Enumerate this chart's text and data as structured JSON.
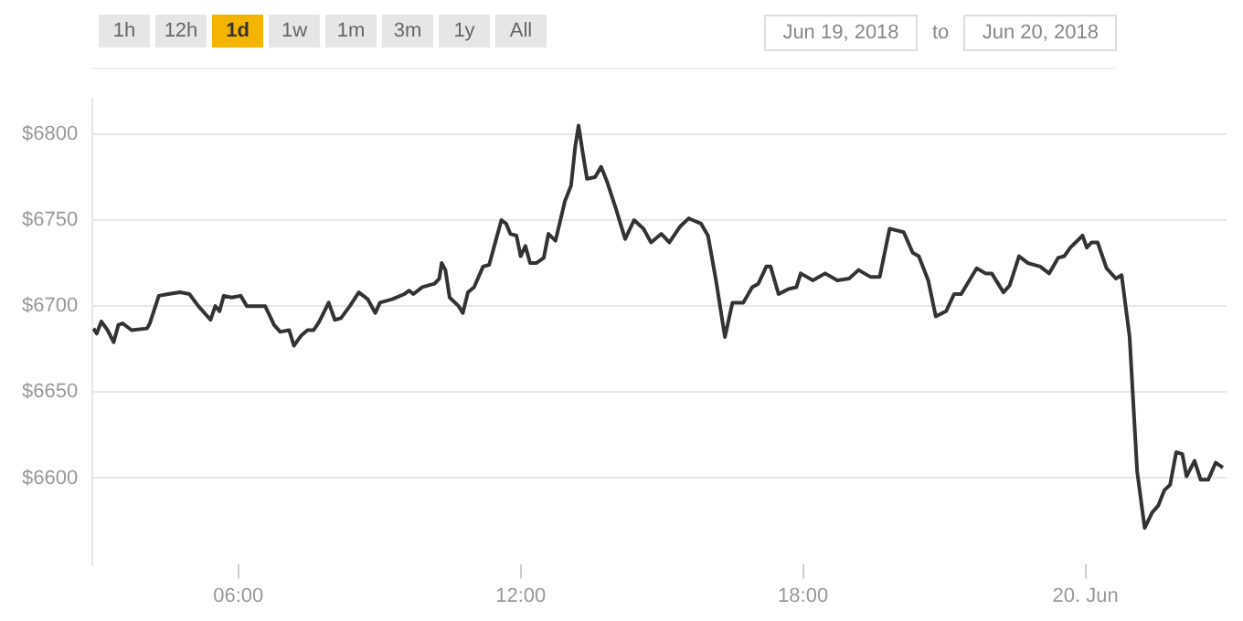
{
  "chart_data": {
    "type": "line",
    "annotations": [
      "1h",
      "12h",
      "1d",
      "1w",
      "1m",
      "3m",
      "1y",
      "All",
      "Jun 19, 2018",
      "to",
      "Jun 20, 2018"
    ],
    "x": [
      2.92,
      2.99,
      3.09,
      3.22,
      3.35,
      3.45,
      3.54,
      3.73,
      4.06,
      4.12,
      4.31,
      4.51,
      4.76,
      4.96,
      5.15,
      5.41,
      5.51,
      5.6,
      5.69,
      5.86,
      6.05,
      6.18,
      6.57,
      6.76,
      6.89,
      7.08,
      7.18,
      7.34,
      7.47,
      7.6,
      7.72,
      7.92,
      8.05,
      8.18,
      8.37,
      8.56,
      8.75,
      8.91,
      9.01,
      9.27,
      9.53,
      9.63,
      9.72,
      9.91,
      10.17,
      10.27,
      10.32,
      10.4,
      10.49,
      10.68,
      10.77,
      10.88,
      11.01,
      11.2,
      11.33,
      11.43,
      11.59,
      11.69,
      11.78,
      11.91,
      12.0,
      12.1,
      12.2,
      12.33,
      12.49,
      12.59,
      12.74,
      12.94,
      13.07,
      13.16,
      13.23,
      13.32,
      13.41,
      13.58,
      13.71,
      13.84,
      14.03,
      14.22,
      14.41,
      14.61,
      14.77,
      14.99,
      15.16,
      15.38,
      15.57,
      15.83,
      15.98,
      16.15,
      16.34,
      16.5,
      16.73,
      16.92,
      17.05,
      17.22,
      17.31,
      17.48,
      17.7,
      17.86,
      17.95,
      18.21,
      18.47,
      18.73,
      18.98,
      19.18,
      19.43,
      19.63,
      19.84,
      20.14,
      20.33,
      20.46,
      20.66,
      20.82,
      21.04,
      21.21,
      21.36,
      21.69,
      21.88,
      22.01,
      22.26,
      22.39,
      22.59,
      22.78,
      23.04,
      23.23,
      23.42,
      23.55,
      23.68,
      23.94,
      24.03,
      24.13,
      24.26,
      24.45,
      24.65,
      24.77,
      24.94,
      25.1,
      25.26,
      25.42,
      25.55,
      25.68,
      25.8,
      25.93,
      26.06,
      26.15,
      26.32,
      26.45,
      26.61,
      26.77,
      26.92
    ],
    "series": [
      {
        "color": "#333333",
        "values": [
          6687,
          6684,
          6691,
          6686,
          6679,
          6689,
          6690,
          6686,
          6687,
          6690,
          6706,
          6707,
          6708,
          6707,
          6700,
          6692,
          6700,
          6697,
          6706,
          6705,
          6706,
          6700,
          6700,
          6689,
          6685,
          6686,
          6677,
          6683,
          6686,
          6686,
          6691,
          6702,
          6692,
          6693,
          6700,
          6708,
          6704,
          6696,
          6702,
          6704,
          6707,
          6709,
          6707,
          6711,
          6713,
          6716,
          6725,
          6721,
          6705,
          6700,
          6696,
          6708,
          6711,
          6723,
          6724,
          6734,
          6750,
          6748,
          6742,
          6741,
          6729,
          6735,
          6725,
          6725,
          6728,
          6742,
          6738,
          6761,
          6770,
          6793,
          6805,
          6789,
          6774,
          6775,
          6781,
          6772,
          6756,
          6739,
          6750,
          6745,
          6737,
          6742,
          6737,
          6746,
          6751,
          6748,
          6741,
          6715,
          6682,
          6702,
          6702,
          6711,
          6713,
          6723,
          6723,
          6707,
          6710,
          6711,
          6719,
          6715,
          6719,
          6715,
          6716,
          6721,
          6717,
          6717,
          6745,
          6743,
          6731,
          6729,
          6715,
          6694,
          6697,
          6707,
          6707,
          6722,
          6719,
          6719,
          6708,
          6712,
          6729,
          6725,
          6723,
          6719,
          6728,
          6729,
          6734,
          6741,
          6734,
          6737,
          6737,
          6722,
          6716,
          6718,
          6682,
          6604,
          6571,
          6580,
          6584,
          6593,
          6596,
          6615,
          6614,
          6601,
          6610,
          6599,
          6599,
          6609,
          6606
        ]
      }
    ],
    "xlim": [
      2.9,
      27
    ],
    "xticks": [
      {
        "value": 6,
        "label": "06:00"
      },
      {
        "value": 12,
        "label": "12:00"
      },
      {
        "value": 18,
        "label": "18:00"
      },
      {
        "value": 24,
        "label": "20. Jun"
      }
    ],
    "ylim": [
      6550,
      6820
    ],
    "yticks": [
      {
        "value": 6600,
        "label": "$6600"
      },
      {
        "value": 6650,
        "label": "$6650"
      },
      {
        "value": 6700,
        "label": "$6700"
      },
      {
        "value": 6750,
        "label": "$6750"
      },
      {
        "value": 6800,
        "label": "$6800"
      }
    ],
    "grid": "y",
    "legend": false,
    "marker": "none",
    "line_style": "solid"
  }
}
